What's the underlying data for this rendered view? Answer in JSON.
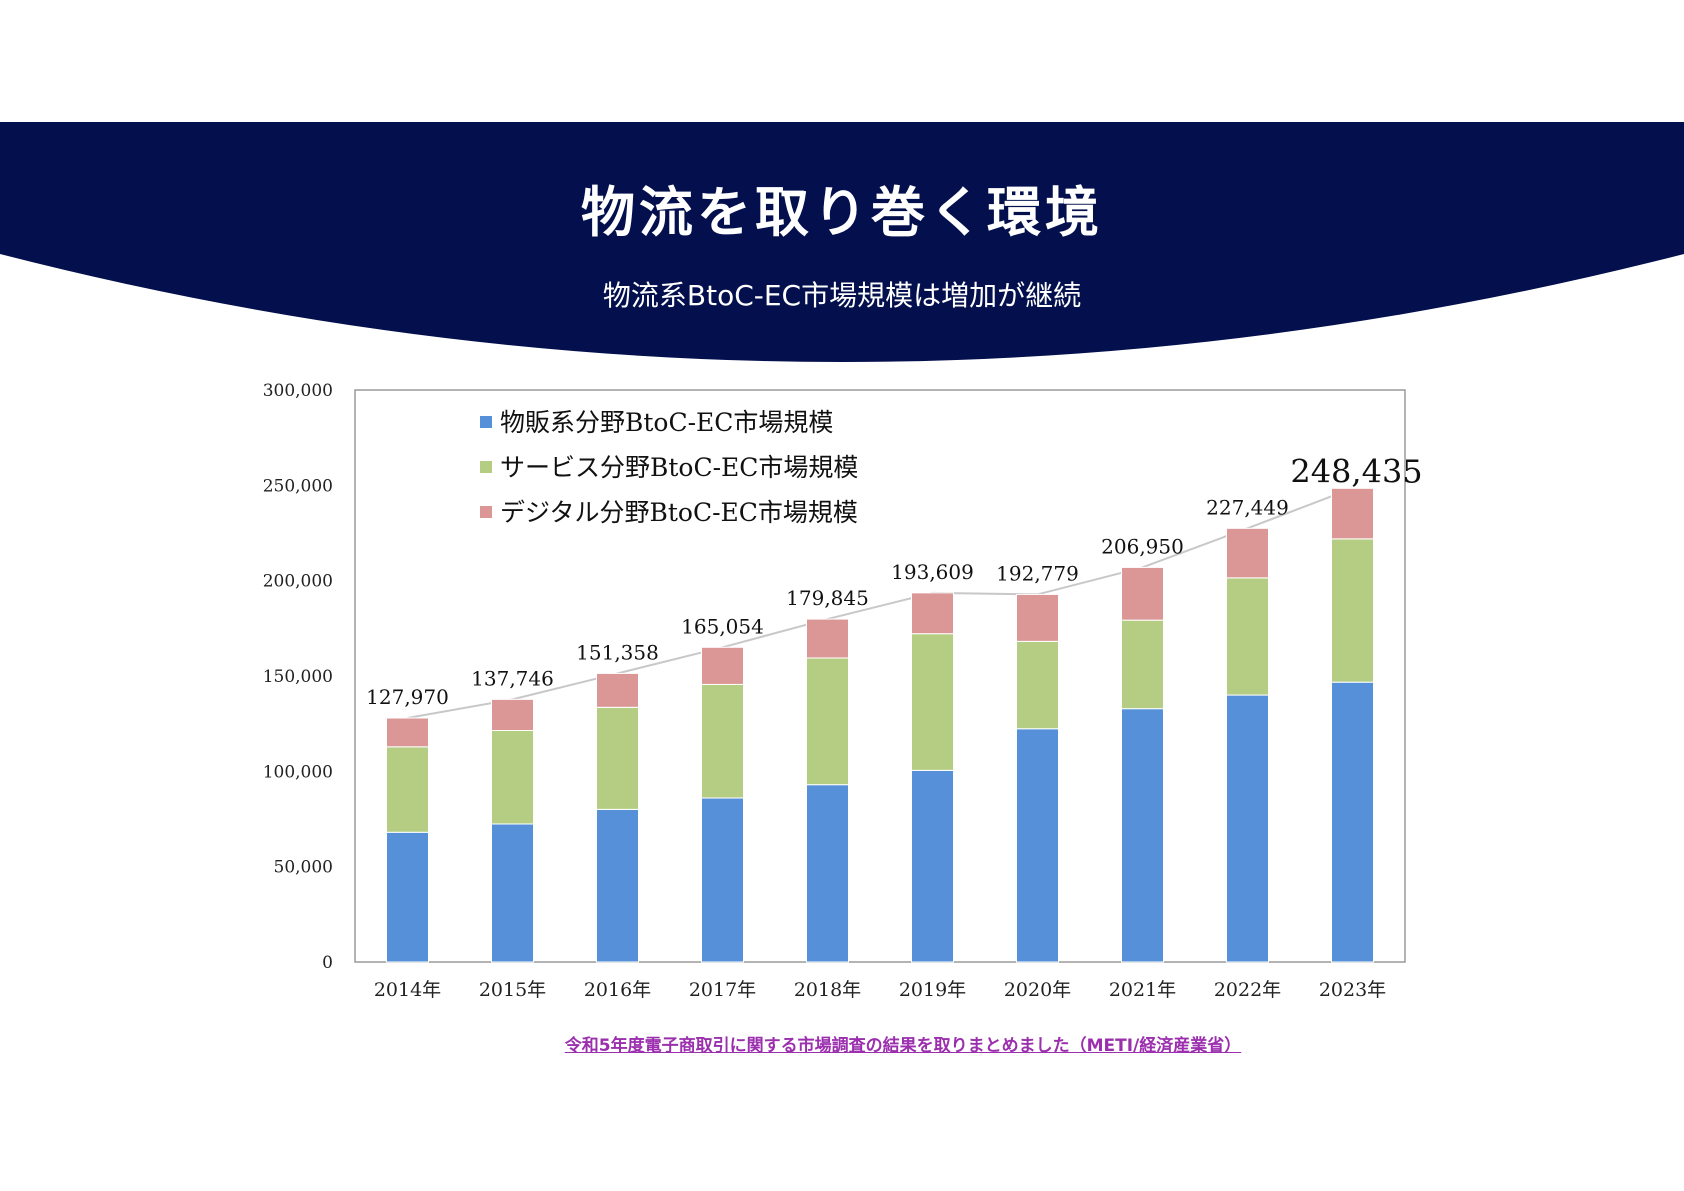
{
  "header": {
    "title": "物流を取り巻く環境",
    "subtitle": "物流系BtoC-EC市場規模は増加が継続",
    "band_color": "#03104d"
  },
  "source": {
    "label": "令和5年度電子商取引に関する市場調査の結果を取りまとめました（METI/経済産業省）",
    "color": "#9b2fae"
  },
  "chart_data": {
    "type": "bar",
    "stacked": true,
    "categories": [
      "2014年",
      "2015年",
      "2016年",
      "2017年",
      "2018年",
      "2019年",
      "2020年",
      "2021年",
      "2022年",
      "2023年"
    ],
    "series": [
      {
        "name": "物販系分野BtoC-EC市場規模",
        "color": "#5590d8",
        "values": [
          68042,
          72398,
          80043,
          86008,
          92992,
          100515,
          122333,
          132865,
          139997,
          146760
        ]
      },
      {
        "name": "サービス分野BtoC-EC市場規模",
        "color": "#b5cd83",
        "values": [
          44816,
          49014,
          53532,
          59568,
          66471,
          71672,
          45832,
          46424,
          61477,
          75169
        ]
      },
      {
        "name": "デジタル分野BtoC-EC市場規模",
        "color": "#db9795",
        "values": [
          15112,
          16334,
          17782,
          19478,
          20382,
          21422,
          24614,
          27661,
          25974,
          26506
        ]
      }
    ],
    "totals": [
      127970,
      137746,
      151358,
      165054,
      179845,
      193609,
      192779,
      206950,
      227449,
      248435
    ],
    "total_labels": [
      "127,970",
      "137,746",
      "151,358",
      "165,054",
      "179,845",
      "193,609",
      "192,779",
      "206,950",
      "227,449",
      "248,435"
    ],
    "y_ticks": [
      "0",
      "50,000",
      "100,000",
      "150,000",
      "200,000",
      "250,000",
      "300,000"
    ],
    "ylim": [
      0,
      300000
    ],
    "legend_position": "top-left",
    "total_line_color": "#c8c8c8",
    "grid": false
  }
}
